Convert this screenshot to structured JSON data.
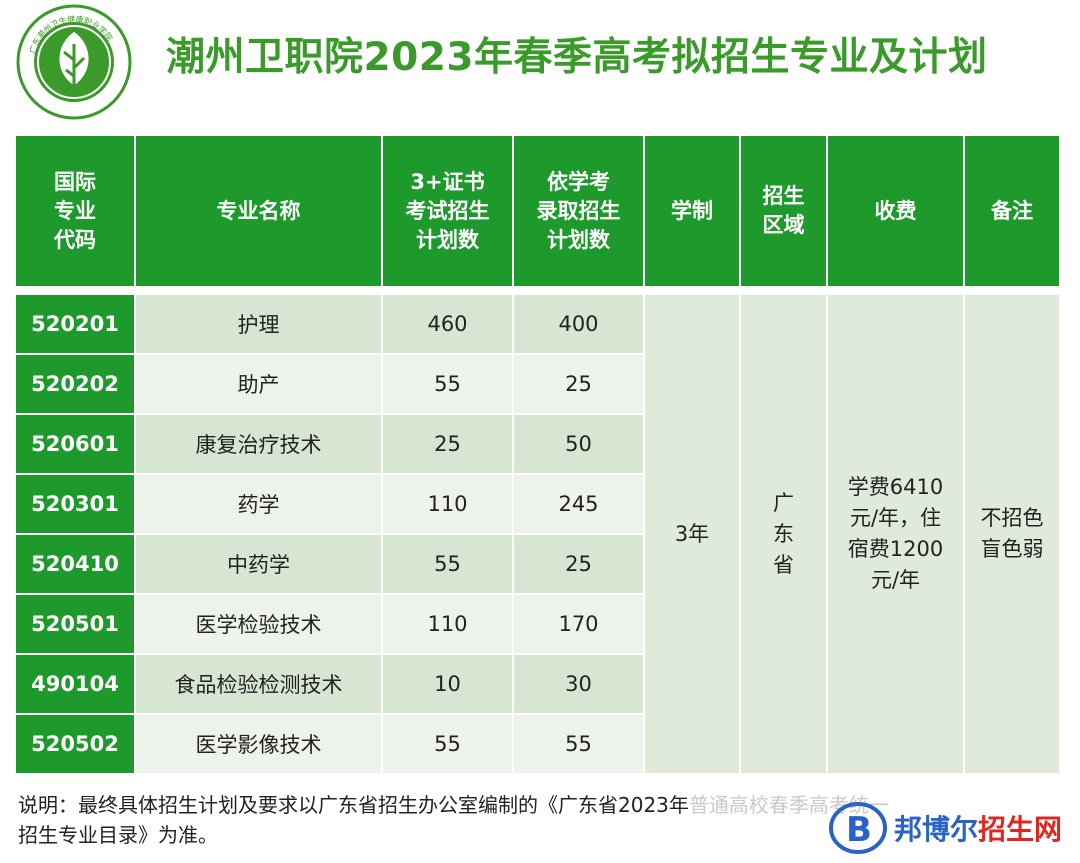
{
  "title": "潮州卫职院2023年春季高考拟招生专业及计划",
  "logo": {
    "ring_text": "广东潮州卫生健康职业学院",
    "ring_text_en": "Guangdong Chaozhou Health Vocational College"
  },
  "colors": {
    "header_green": "#1e9a2c",
    "title_green": "#3a9a2a",
    "row_dark": "#d7e6d3",
    "row_light": "#edf3ea"
  },
  "table": {
    "headers": {
      "code": [
        "国际",
        "专业",
        "代码"
      ],
      "name": "专业名称",
      "cert": [
        "3+证书",
        "考试招生",
        "计划数"
      ],
      "xuekao": [
        "依学考",
        "录取招生",
        "计划数"
      ],
      "duration": "学制",
      "region": [
        "招生",
        "区域"
      ],
      "fee": "收费",
      "remark": "备注"
    },
    "rows": [
      {
        "code": "520201",
        "name": "护理",
        "cert": "460",
        "xuekao": "400"
      },
      {
        "code": "520202",
        "name": "助产",
        "cert": "55",
        "xuekao": "25"
      },
      {
        "code": "520601",
        "name": "康复治疗技术",
        "cert": "25",
        "xuekao": "50"
      },
      {
        "code": "520301",
        "name": "药学",
        "cert": "110",
        "xuekao": "245"
      },
      {
        "code": "520410",
        "name": "中药学",
        "cert": "55",
        "xuekao": "25"
      },
      {
        "code": "520501",
        "name": "医学检验技术",
        "cert": "110",
        "xuekao": "170"
      },
      {
        "code": "490104",
        "name": "食品检验检测技术",
        "cert": "10",
        "xuekao": "30"
      },
      {
        "code": "520502",
        "name": "医学影像技术",
        "cert": "55",
        "xuekao": "55"
      }
    ],
    "merged": {
      "duration": "3年",
      "region": [
        "广",
        "东",
        "省"
      ],
      "fee": [
        "学费6410",
        "元/年，住",
        "宿费1200",
        "元/年"
      ],
      "remark": [
        "不招色",
        "盲色弱"
      ]
    }
  },
  "note": {
    "line1_visible": "说明：最终具体招生计划及要求以广东省招生办公室编制的《广东省2023年",
    "line1_faded": "普通高校春季高考统一",
    "line2": "招生专业目录》为准。"
  },
  "watermark": {
    "part1": "邦博尔",
    "part2": "招生网"
  }
}
